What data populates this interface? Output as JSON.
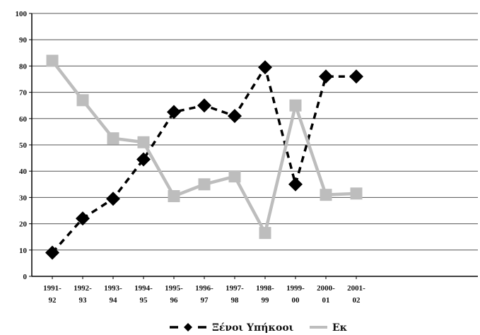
{
  "chart_data": {
    "type": "line",
    "title": "",
    "xlabel": "",
    "ylabel": "",
    "ylim": [
      0,
      100
    ],
    "yticks": [
      0,
      10,
      20,
      30,
      40,
      50,
      60,
      70,
      80,
      90,
      100
    ],
    "grid": true,
    "legend_position": "bottom",
    "categories": [
      [
        "1991-",
        "92"
      ],
      [
        "1992-",
        "93"
      ],
      [
        "1993-",
        "94"
      ],
      [
        "1994-",
        "95"
      ],
      [
        "1995-",
        "96"
      ],
      [
        "1996-",
        "97"
      ],
      [
        "1997-",
        "98"
      ],
      [
        "1998-",
        "99"
      ],
      [
        "1999-",
        "00"
      ],
      [
        "2000-",
        "01"
      ],
      [
        "2001-",
        "02"
      ]
    ],
    "series": [
      {
        "name": "Ξένοι Υπήκοοι",
        "color": "#000000",
        "line_style": "dashed",
        "marker": "diamond",
        "values": [
          9,
          22,
          29.5,
          44.5,
          62.5,
          65,
          61,
          79.5,
          35,
          76,
          76
        ]
      },
      {
        "name": "Εκ",
        "color": "#bdbdbd",
        "line_style": "solid",
        "marker": "square",
        "values": [
          82,
          67,
          52.5,
          51,
          30.5,
          35,
          38,
          16.5,
          65,
          31,
          31.5
        ]
      }
    ]
  }
}
